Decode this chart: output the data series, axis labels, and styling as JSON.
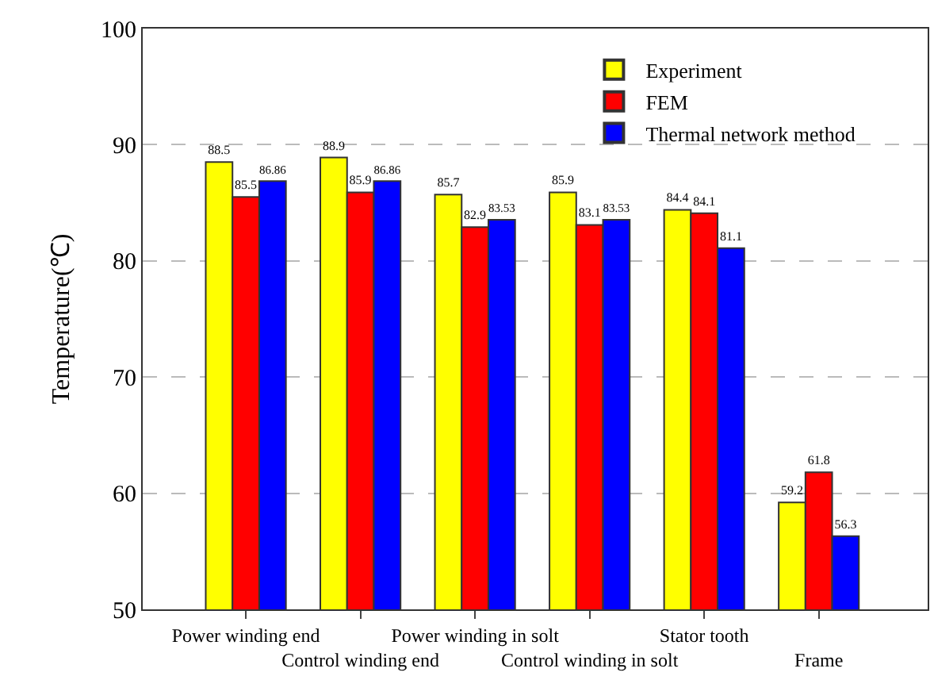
{
  "chart_data": {
    "type": "bar",
    "ylabel": "Temperature(℃)",
    "categories": [
      "Power winding end",
      "Control winding end",
      "Power winding in solt",
      "Control winding in solt",
      "Stator tooth",
      "Frame"
    ],
    "series": [
      {
        "name": "Experiment",
        "color": "#ffff00",
        "values": [
          88.5,
          88.9,
          85.7,
          85.9,
          84.4,
          59.2
        ]
      },
      {
        "name": "FEM",
        "color": "#ff0000",
        "values": [
          85.5,
          85.9,
          82.9,
          83.1,
          84.1,
          61.8
        ]
      },
      {
        "name": "Thermal network method",
        "color": "#0000ff",
        "values": [
          86.86,
          86.86,
          83.53,
          83.53,
          81.1,
          56.3
        ]
      }
    ],
    "ylim": [
      50,
      100
    ],
    "yticks": [
      50,
      60,
      70,
      80,
      90,
      100
    ],
    "grid": "y",
    "legend": "top right",
    "data_labels": true
  }
}
